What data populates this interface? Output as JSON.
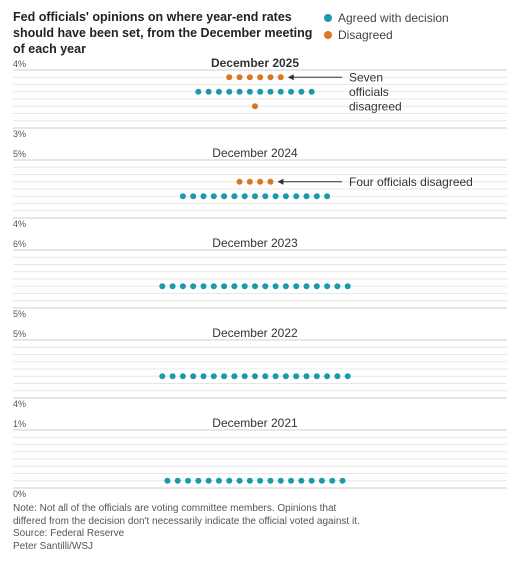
{
  "header": {
    "title": "Fed officials' opinions on where year-end rates should have been set, from the December meeting of each year"
  },
  "legend": {
    "agreed_label": "Agreed with decision",
    "disagreed_label": "Disagreed",
    "agreed_color": "#1a9aaa",
    "disagreed_color": "#d9761f"
  },
  "chart_data": {
    "type": "scatter",
    "title": "Fed officials' opinions on where year-end rates should have been set, from the December meeting of each year",
    "series_names": [
      "Agreed with decision",
      "Disagreed"
    ],
    "panels": [
      {
        "label": "December 2025",
        "ylim": [
          3,
          4
        ],
        "tick_labels": [
          "4%",
          "3%"
        ],
        "groups": [
          {
            "status": "disagreed",
            "rate": 3.875,
            "count": 6
          },
          {
            "status": "agreed",
            "rate": 3.625,
            "count": 12
          },
          {
            "status": "disagreed",
            "rate": 3.375,
            "count": 1
          }
        ],
        "annotation": [
          "Seven",
          "officials",
          "disagreed"
        ]
      },
      {
        "label": "December 2024",
        "ylim": [
          4,
          5
        ],
        "tick_labels": [
          "5%",
          "4%"
        ],
        "groups": [
          {
            "status": "disagreed",
            "rate": 4.625,
            "count": 4
          },
          {
            "status": "agreed",
            "rate": 4.375,
            "count": 15
          }
        ],
        "annotation": [
          "Four officials disagreed"
        ]
      },
      {
        "label": "December 2023",
        "ylim": [
          5,
          6
        ],
        "tick_labels": [
          "6%",
          "5%"
        ],
        "groups": [
          {
            "status": "agreed",
            "rate": 5.375,
            "count": 19
          }
        ],
        "annotation": []
      },
      {
        "label": "December 2022",
        "ylim": [
          4,
          5
        ],
        "tick_labels": [
          "5%",
          "4%"
        ],
        "groups": [
          {
            "status": "agreed",
            "rate": 4.375,
            "count": 19
          }
        ],
        "annotation": []
      },
      {
        "label": "December 2021",
        "ylim": [
          0,
          1
        ],
        "tick_labels": [
          "1%",
          "0%"
        ],
        "groups": [
          {
            "status": "agreed",
            "rate": 0.125,
            "count": 18
          }
        ],
        "annotation": []
      }
    ]
  },
  "footer": {
    "note_line1": "Note: Not all of the officials are voting committee members. Opinions that",
    "note_line2": "differed from the decision don't necessarily indicate the official voted against it.",
    "source": "Source: Federal Reserve",
    "credit": "Peter Santilli/WSJ"
  }
}
